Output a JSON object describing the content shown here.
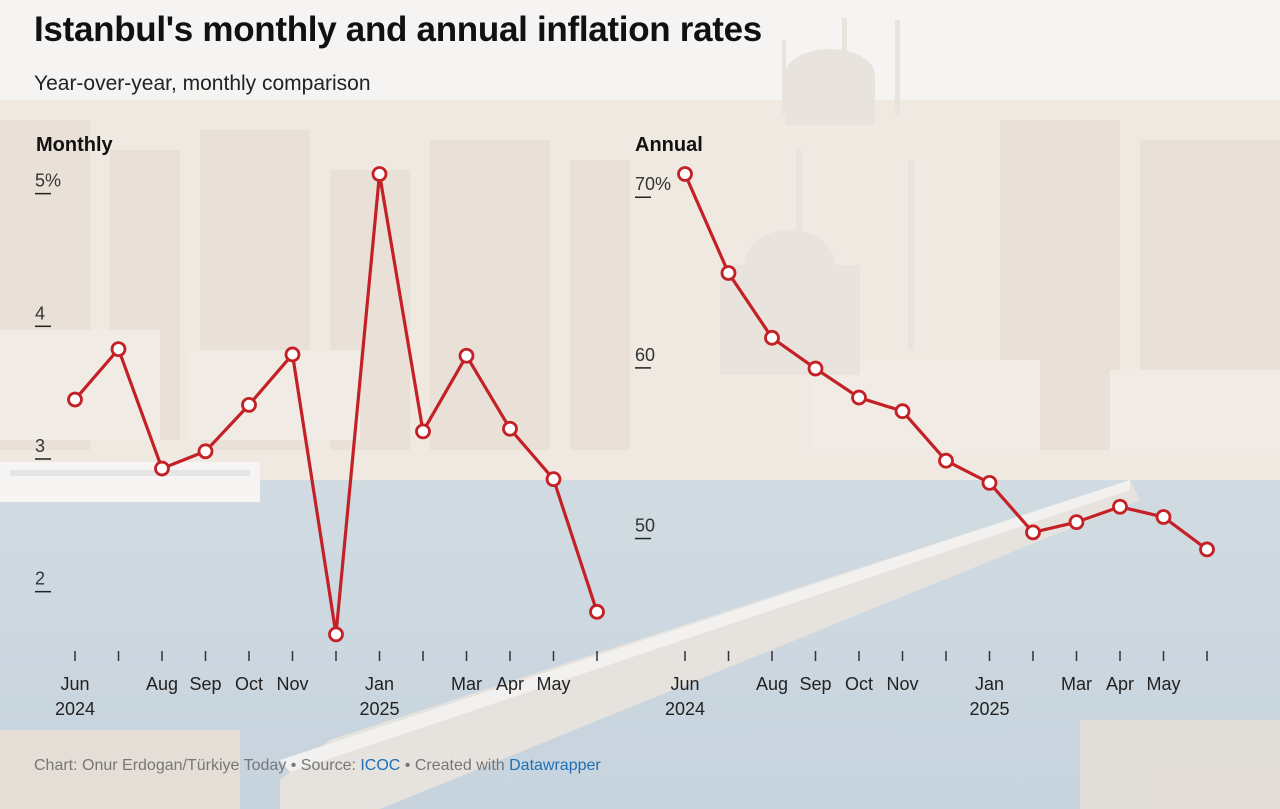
{
  "title": "Istanbul's monthly and annual inflation rates",
  "subtitle": "Year-over-year, monthly comparison",
  "colors": {
    "line": "#c42126",
    "marker_fill": "#ffffff",
    "text": "#111111",
    "link": "#1f6fb5"
  },
  "chart_data": [
    {
      "type": "line",
      "title": "Monthly",
      "y_ticks": [
        "5%",
        "4",
        "3",
        "2"
      ],
      "y_tick_values": [
        5,
        4,
        3,
        2
      ],
      "ylim": [
        1.5,
        5.05
      ],
      "x": [
        "Jun 2024",
        "Jul 2024",
        "Aug 2024",
        "Sep 2024",
        "Oct 2024",
        "Nov 2024",
        "Dec 2024",
        "Jan 2025",
        "Feb 2025",
        "Mar 2025",
        "Apr 2025",
        "May 2025",
        "Jun 2025"
      ],
      "x_tick_labels": [
        {
          "index": 0,
          "line1": "Jun",
          "line2": "2024"
        },
        {
          "index": 2,
          "line1": "Aug",
          "line2": ""
        },
        {
          "index": 3,
          "line1": "Sep",
          "line2": ""
        },
        {
          "index": 4,
          "line1": "Oct",
          "line2": ""
        },
        {
          "index": 5,
          "line1": "Nov",
          "line2": ""
        },
        {
          "index": 7,
          "line1": "Jan",
          "line2": "2025"
        },
        {
          "index": 9,
          "line1": "Mar",
          "line2": ""
        },
        {
          "index": 10,
          "line1": "Apr",
          "line2": ""
        },
        {
          "index": 11,
          "line1": "May",
          "line2": ""
        }
      ],
      "values": [
        3.35,
        3.73,
        2.83,
        2.96,
        3.31,
        3.69,
        1.58,
        5.05,
        3.11,
        3.68,
        3.13,
        2.75,
        1.75
      ]
    },
    {
      "type": "line",
      "title": "Annual",
      "y_ticks": [
        "70%",
        "60",
        "50"
      ],
      "y_tick_values": [
        70,
        60,
        50
      ],
      "ylim": [
        43,
        70.6
      ],
      "x": [
        "Jun 2024",
        "Jul 2024",
        "Aug 2024",
        "Sep 2024",
        "Oct 2024",
        "Nov 2024",
        "Dec 2024",
        "Jan 2025",
        "Feb 2025",
        "Mar 2025",
        "Apr 2025",
        "May 2025",
        "Jun 2025"
      ],
      "x_tick_labels": [
        {
          "index": 0,
          "line1": "Jun",
          "line2": "2024"
        },
        {
          "index": 2,
          "line1": "Aug",
          "line2": ""
        },
        {
          "index": 3,
          "line1": "Sep",
          "line2": ""
        },
        {
          "index": 4,
          "line1": "Oct",
          "line2": ""
        },
        {
          "index": 5,
          "line1": "Nov",
          "line2": ""
        },
        {
          "index": 7,
          "line1": "Jan",
          "line2": "2025"
        },
        {
          "index": 9,
          "line1": "Mar",
          "line2": ""
        },
        {
          "index": 10,
          "line1": "Apr",
          "line2": ""
        },
        {
          "index": 11,
          "line1": "May",
          "line2": ""
        }
      ],
      "values": [
        70.6,
        64.8,
        61.0,
        59.2,
        57.5,
        56.7,
        53.8,
        52.5,
        49.6,
        50.2,
        51.1,
        50.5,
        48.6
      ]
    }
  ],
  "footer": {
    "prefix": "Chart: Onur Erdogan/Türkiye Today • Source: ",
    "source_link": "ICOC",
    "middle": " • Created with ",
    "tool_link": "Datawrapper"
  }
}
